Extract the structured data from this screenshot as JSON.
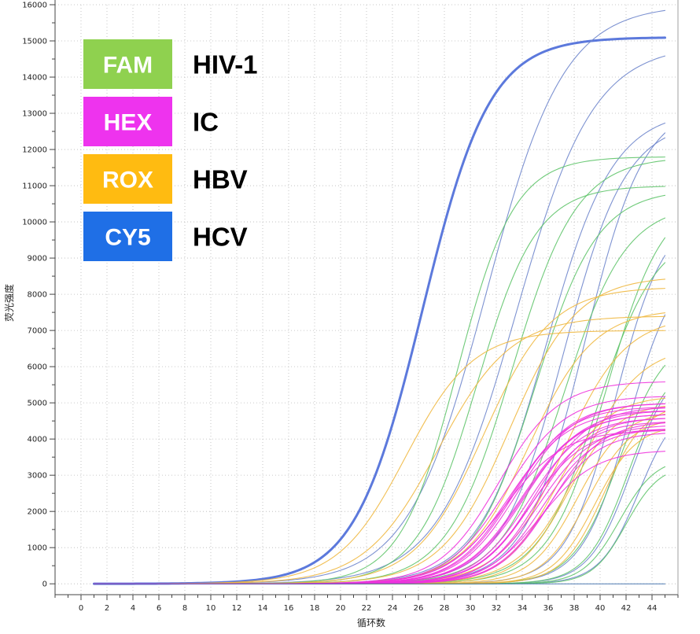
{
  "chart_data": {
    "type": "line",
    "title": "",
    "xlabel": "循环数",
    "ylabel": "荧光强度",
    "xlim": [
      -2,
      46
    ],
    "ylim": [
      -300,
      16000
    ],
    "x_ticks": [
      0,
      2,
      4,
      6,
      8,
      10,
      12,
      14,
      16,
      18,
      20,
      22,
      24,
      26,
      28,
      30,
      32,
      34,
      36,
      38,
      40,
      42,
      44
    ],
    "y_ticks": [
      0,
      1000,
      2000,
      3000,
      4000,
      5000,
      6000,
      7000,
      8000,
      9000,
      10000,
      11000,
      12000,
      13000,
      14000,
      15000,
      16000
    ],
    "x_range": [
      1,
      45
    ],
    "grid": true,
    "legend": {
      "placement": "top-left",
      "entries": [
        {
          "dye": "FAM",
          "target": "HIV-1",
          "color": "#8fd14f"
        },
        {
          "dye": "HEX",
          "target": "IC",
          "color": "#ee33ee"
        },
        {
          "dye": "ROX",
          "target": "HBV",
          "color": "#ffbb11"
        },
        {
          "dye": "CY5",
          "target": "HCV",
          "color": "#1f6fe6"
        }
      ]
    },
    "curve_model": "sigmoid: y = plateau / (1 + exp(-(x - midpoint) / slope))",
    "series_groups": [
      {
        "dye": "CY5",
        "color": "#4a6ad8",
        "stroke_width": 3,
        "curves": [
          {
            "plateau": 15100,
            "midpoint": 26.3,
            "slope": 2.6
          }
        ]
      },
      {
        "dye": "CY5",
        "color": "#6f86cc",
        "stroke_width": 1.1,
        "curves": [
          {
            "plateau": 16000,
            "midpoint": 31.2,
            "slope": 3.0
          },
          {
            "plateau": 14900,
            "midpoint": 33.5,
            "slope": 3.0
          },
          {
            "plateau": 13100,
            "midpoint": 35.8,
            "slope": 2.6
          },
          {
            "plateau": 12800,
            "midpoint": 37.2,
            "slope": 2.4
          },
          {
            "plateau": 13300,
            "midpoint": 38.8,
            "slope": 2.3
          },
          {
            "plateau": 10300,
            "midpoint": 41.2,
            "slope": 1.9
          },
          {
            "plateau": 9000,
            "midpoint": 42.2,
            "slope": 1.8
          },
          {
            "plateau": 6200,
            "midpoint": 42.4,
            "slope": 1.6
          },
          {
            "plateau": 5100,
            "midpoint": 43.0,
            "slope": 1.5
          }
        ]
      },
      {
        "dye": "FAM",
        "color": "#5fc46a",
        "stroke_width": 1.1,
        "curves": [
          {
            "plateau": 11800,
            "midpoint": 29.0,
            "slope": 2.2
          },
          {
            "plateau": 11000,
            "midpoint": 30.5,
            "slope": 2.3
          },
          {
            "plateau": 11800,
            "midpoint": 33.2,
            "slope": 2.5
          },
          {
            "plateau": 10900,
            "midpoint": 35.0,
            "slope": 2.4
          },
          {
            "plateau": 10500,
            "midpoint": 37.2,
            "slope": 2.4
          },
          {
            "plateau": 9800,
            "midpoint": 39.8,
            "slope": 2.3
          },
          {
            "plateau": 10800,
            "midpoint": 40.5,
            "slope": 2.2
          },
          {
            "plateau": 6900,
            "midpoint": 41.5,
            "slope": 1.8
          },
          {
            "plateau": 6200,
            "midpoint": 42.2,
            "slope": 1.6
          },
          {
            "plateau": 3500,
            "midpoint": 41.5,
            "slope": 1.4
          },
          {
            "plateau": 3300,
            "midpoint": 42.0,
            "slope": 1.3
          }
        ]
      },
      {
        "dye": "ROX",
        "color": "#f0b840",
        "stroke_width": 1.1,
        "curves": [
          {
            "plateau": 7000,
            "midpoint": 25.0,
            "slope": 2.6
          },
          {
            "plateau": 7400,
            "midpoint": 27.5,
            "slope": 2.8
          },
          {
            "plateau": 8200,
            "midpoint": 31.0,
            "slope": 2.6
          },
          {
            "plateau": 8500,
            "midpoint": 33.0,
            "slope": 2.6
          },
          {
            "plateau": 7600,
            "midpoint": 34.5,
            "slope": 2.5
          },
          {
            "plateau": 7400,
            "midpoint": 37.2,
            "slope": 2.4
          },
          {
            "plateau": 6600,
            "midpoint": 38.5,
            "slope": 2.3
          },
          {
            "plateau": 5200,
            "midpoint": 36.5,
            "slope": 2.0
          },
          {
            "plateau": 5000,
            "midpoint": 37.5,
            "slope": 1.9
          },
          {
            "plateau": 4800,
            "midpoint": 38.3,
            "slope": 1.8
          },
          {
            "plateau": 4600,
            "midpoint": 39.0,
            "slope": 1.7
          },
          {
            "plateau": 4400,
            "midpoint": 39.6,
            "slope": 1.6
          },
          {
            "plateau": 5000,
            "midpoint": 40.3,
            "slope": 1.6
          }
        ]
      },
      {
        "dye": "HEX",
        "color": "#ee33dd",
        "stroke_width": 1.1,
        "curves": [
          {
            "plateau": 5600,
            "midpoint": 32.2,
            "slope": 2.3
          },
          {
            "plateau": 5200,
            "midpoint": 32.8,
            "slope": 2.3
          },
          {
            "plateau": 4900,
            "midpoint": 33.2,
            "slope": 2.2
          },
          {
            "plateau": 5000,
            "midpoint": 33.6,
            "slope": 2.2
          },
          {
            "plateau": 4700,
            "midpoint": 33.9,
            "slope": 2.2
          },
          {
            "plateau": 4800,
            "midpoint": 34.2,
            "slope": 2.2
          },
          {
            "plateau": 4600,
            "midpoint": 34.5,
            "slope": 2.1
          },
          {
            "plateau": 4500,
            "midpoint": 34.8,
            "slope": 2.1
          },
          {
            "plateau": 4900,
            "midpoint": 35.0,
            "slope": 2.1
          },
          {
            "plateau": 4400,
            "midpoint": 35.3,
            "slope": 2.1
          },
          {
            "plateau": 4300,
            "midpoint": 35.6,
            "slope": 2.0
          },
          {
            "plateau": 4200,
            "midpoint": 35.9,
            "slope": 2.0
          },
          {
            "plateau": 4700,
            "midpoint": 34.0,
            "slope": 2.2
          },
          {
            "plateau": 4800,
            "midpoint": 33.0,
            "slope": 2.3
          },
          {
            "plateau": 4500,
            "midpoint": 36.2,
            "slope": 2.0
          },
          {
            "plateau": 4300,
            "midpoint": 34.6,
            "slope": 2.1
          },
          {
            "plateau": 3700,
            "midpoint": 35.4,
            "slope": 2.1
          },
          {
            "plateau": 5000,
            "midpoint": 33.4,
            "slope": 2.2
          },
          {
            "plateau": 4600,
            "midpoint": 35.2,
            "slope": 2.0
          },
          {
            "plateau": 4250,
            "midpoint": 32.6,
            "slope": 2.3
          }
        ]
      },
      {
        "dye": "CY5",
        "color": "#3a6aa8",
        "stroke_width": 1.0,
        "curves": [
          {
            "plateau": 0,
            "midpoint": 30.0,
            "slope": 2.0
          }
        ]
      }
    ]
  }
}
